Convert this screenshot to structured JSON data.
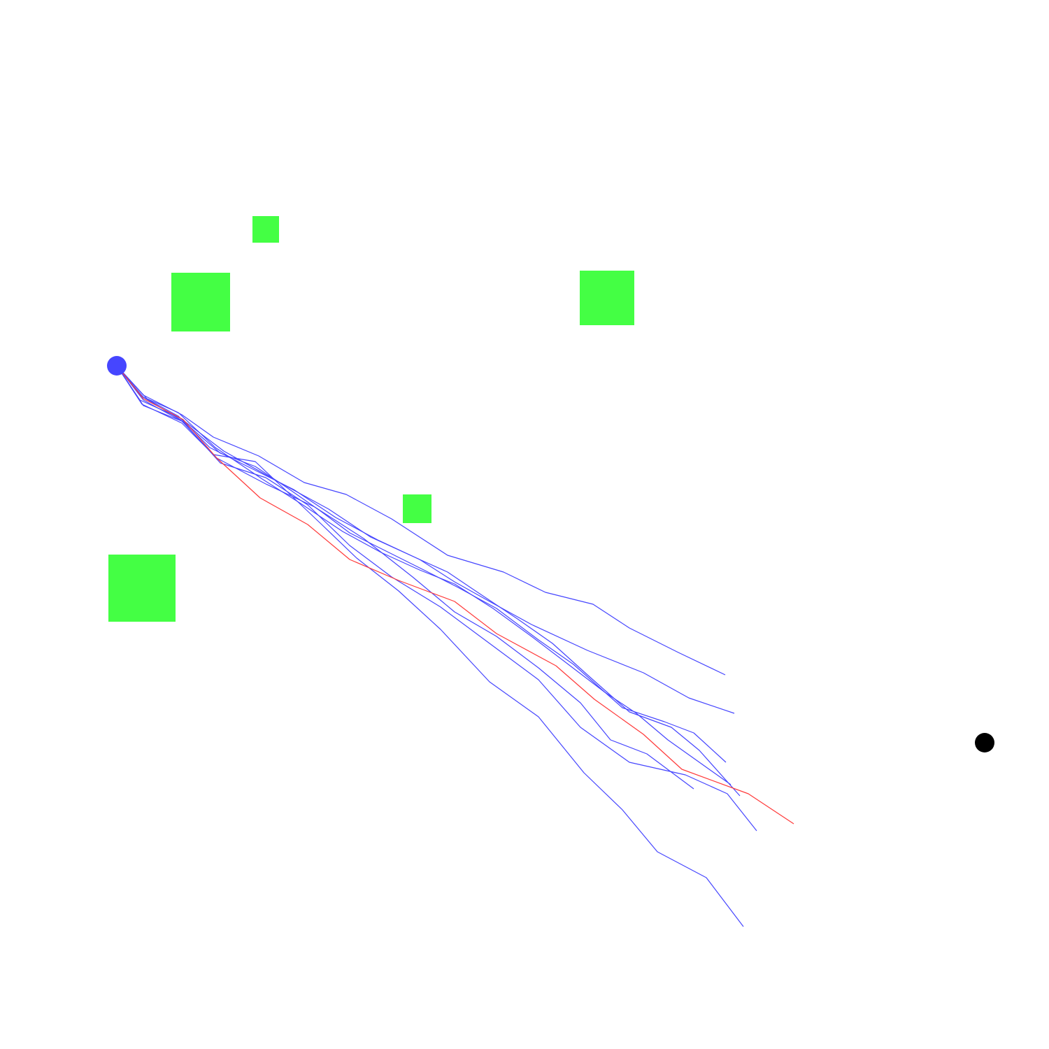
{
  "colors": {
    "background": "#ffffff",
    "obstacle": "#44ff44",
    "start": "#4646ff",
    "goal": "#000000",
    "candidate_path": "#4646ff",
    "best_path": "#ff3a3a"
  },
  "scene": {
    "obstacles": [
      {
        "name": "obstacle-small-top"
      },
      {
        "name": "obstacle-large-left-upper"
      },
      {
        "name": "obstacle-large-right-upper"
      },
      {
        "name": "obstacle-small-center"
      },
      {
        "name": "obstacle-large-left-lower"
      }
    ],
    "start_marker": {
      "name": "start-point"
    },
    "goal_marker": {
      "name": "goal-point"
    },
    "candidate_path_count": 8,
    "best_path_count": 1
  }
}
